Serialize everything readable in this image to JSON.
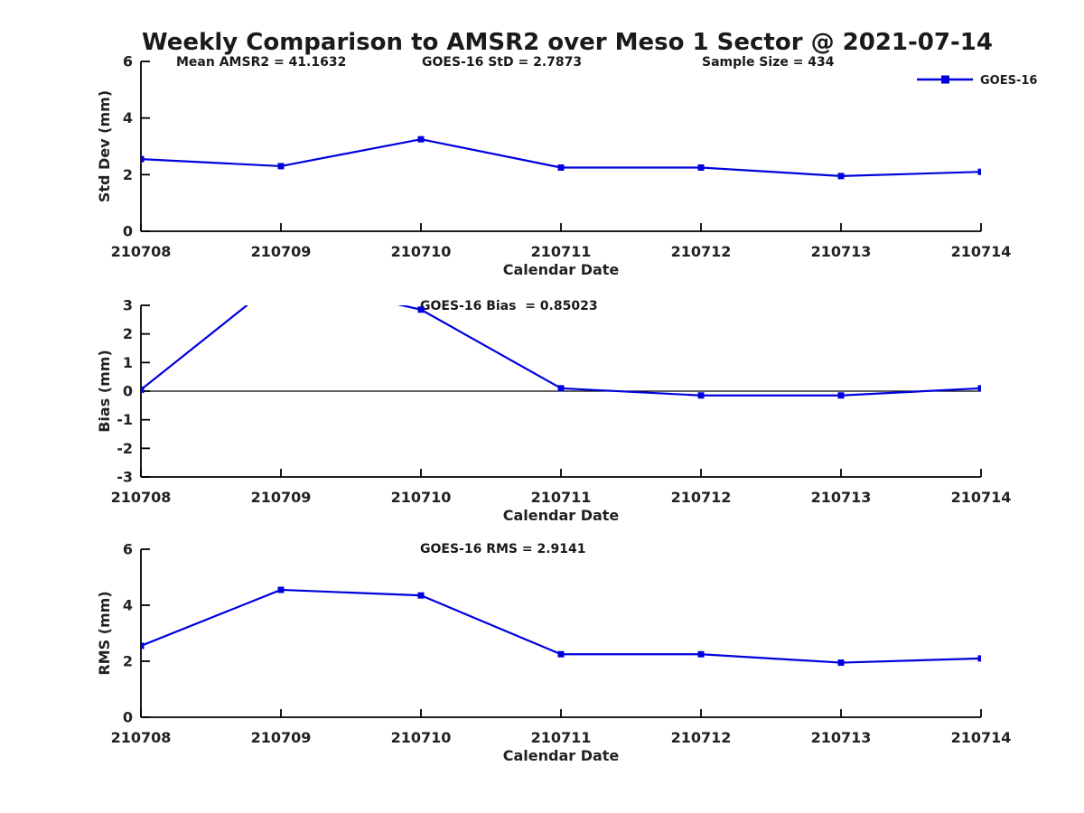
{
  "title": "Weekly Comparison to AMSR2 over Meso 1 Sector @ 2021-07-14",
  "legend": {
    "label": "GOES-16",
    "color": "#0000dd",
    "position": "top-right"
  },
  "chart_data": [
    {
      "type": "line",
      "title": "Std Dev panel",
      "annotations": [
        "Mean AMSR2 = 41.1632",
        "GOES-16 StD = 2.7873",
        "Sample Size = 434"
      ],
      "categories": [
        "210708",
        "210709",
        "210710",
        "210711",
        "210712",
        "210713",
        "210714"
      ],
      "series": [
        {
          "name": "GOES-16",
          "color": "#0000dd",
          "marker": "square",
          "values": [
            2.55,
            2.3,
            3.25,
            2.25,
            2.25,
            1.95,
            2.1
          ]
        }
      ],
      "xlabel": "Calendar Date",
      "ylabel": "Std Dev (mm)",
      "ylim": [
        0,
        6
      ],
      "yticks": [
        0,
        2,
        4,
        6
      ],
      "zero_line": false,
      "grid": false
    },
    {
      "type": "line",
      "title": "Bias panel",
      "annotations": [
        "GOES-16 Bias  = 0.85023"
      ],
      "categories": [
        "210708",
        "210709",
        "210710",
        "210711",
        "210712",
        "210713",
        "210714"
      ],
      "series": [
        {
          "name": "GOES-16",
          "color": "#0000dd",
          "marker": "square",
          "values": [
            0.05,
            3.95,
            2.85,
            0.1,
            -0.15,
            -0.15,
            0.1
          ]
        }
      ],
      "xlabel": "Calendar Date",
      "ylabel": "Bias (mm)",
      "ylim": [
        -3,
        3
      ],
      "yticks": [
        -3,
        -2,
        -1,
        0,
        1,
        2,
        3
      ],
      "zero_line": true,
      "grid": false,
      "note": "210709 value exceeds y-range and is clipped at top of axes"
    },
    {
      "type": "line",
      "title": "RMS panel",
      "annotations": [
        "GOES-16 RMS = 2.9141"
      ],
      "categories": [
        "210708",
        "210709",
        "210710",
        "210711",
        "210712",
        "210713",
        "210714"
      ],
      "series": [
        {
          "name": "GOES-16",
          "color": "#0000dd",
          "marker": "square",
          "values": [
            2.55,
            4.55,
            4.35,
            2.25,
            2.25,
            1.95,
            2.1
          ]
        }
      ],
      "xlabel": "Calendar Date",
      "ylabel": "RMS (mm)",
      "ylim": [
        0,
        6
      ],
      "yticks": [
        0,
        2,
        4,
        6
      ],
      "zero_line": false,
      "grid": false
    }
  ]
}
